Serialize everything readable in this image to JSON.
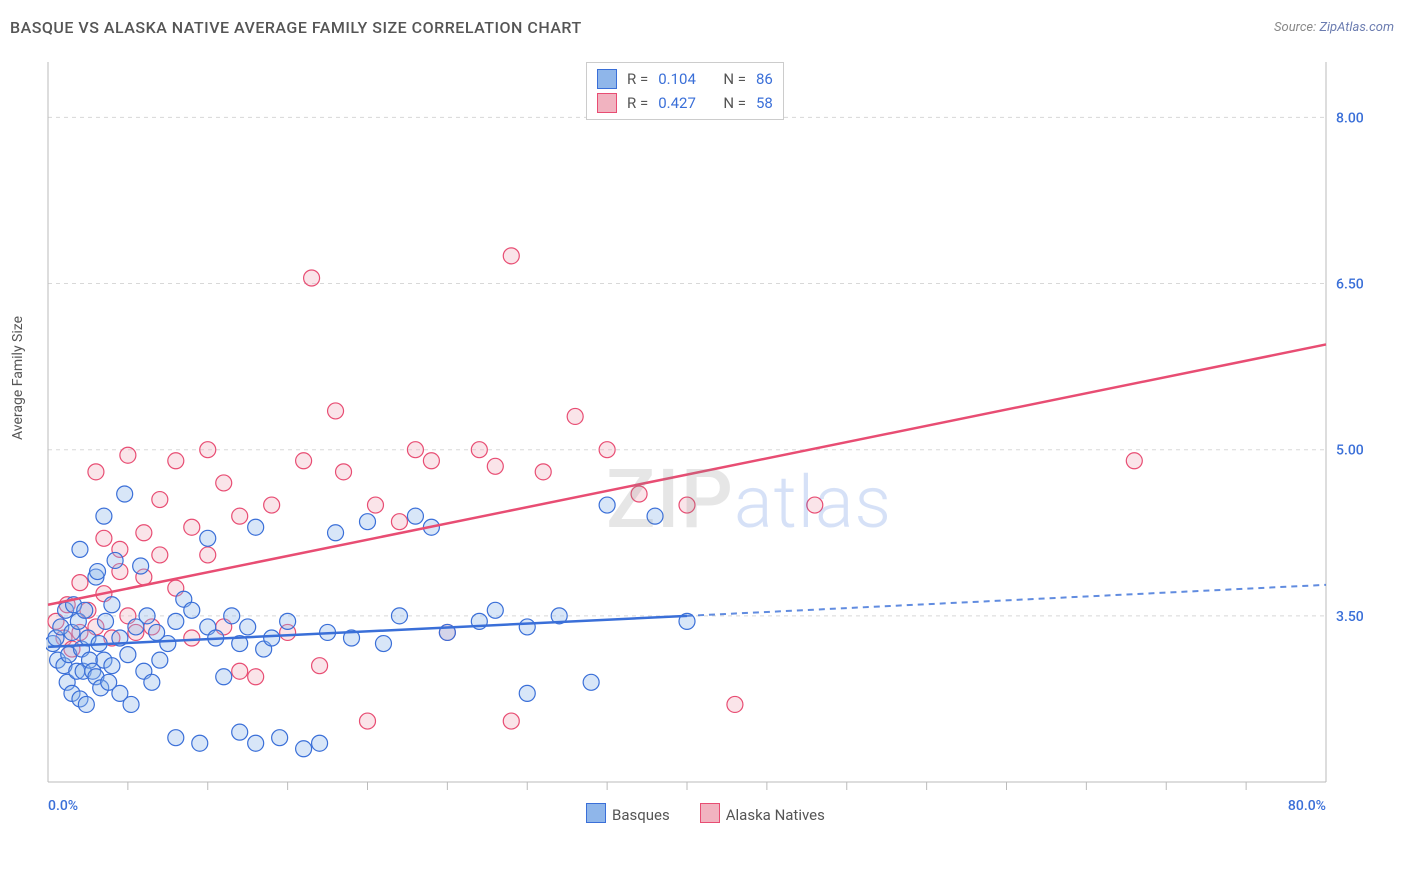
{
  "title": "BASQUE VS ALASKA NATIVE AVERAGE FAMILY SIZE CORRELATION CHART",
  "source_label": "Source:",
  "source_value": "ZipAtlas.com",
  "ylabel": "Average Family Size",
  "watermark_a": "ZIP",
  "watermark_b": "atlas",
  "chart": {
    "type": "scatter",
    "background_color": "#ffffff",
    "grid_color": "#d8d8d8",
    "axis_color": "#bbbbbb",
    "xlim": [
      0,
      80
    ],
    "ylim": [
      2.0,
      8.5
    ],
    "x_tick_label_min": "0.0%",
    "x_tick_label_max": "80.0%",
    "x_minor_ticks": [
      5,
      10,
      15,
      20,
      25,
      30,
      35,
      40,
      45,
      50,
      55,
      60,
      65,
      70,
      75
    ],
    "y_ticks": [
      3.5,
      5.0,
      6.5,
      8.0
    ],
    "label_color": "#3a6fd8",
    "label_fontsize": 14,
    "title_fontsize": 16,
    "point_radius": 8,
    "series": [
      {
        "name": "Basques",
        "fill": "#8fb6ea",
        "stroke": "#3a6fd8",
        "R": "0.104",
        "N": "86",
        "trend": {
          "x1": 0,
          "y1": 3.22,
          "x2": 80,
          "y2": 3.78,
          "solid_until_x": 40
        },
        "points": [
          [
            0.3,
            3.25
          ],
          [
            0.5,
            3.3
          ],
          [
            0.6,
            3.1
          ],
          [
            0.8,
            3.4
          ],
          [
            1.0,
            3.05
          ],
          [
            1.1,
            3.55
          ],
          [
            1.2,
            2.9
          ],
          [
            1.3,
            3.15
          ],
          [
            1.5,
            3.35
          ],
          [
            1.5,
            2.8
          ],
          [
            1.6,
            3.6
          ],
          [
            1.8,
            3.0
          ],
          [
            1.9,
            3.45
          ],
          [
            2.0,
            2.75
          ],
          [
            2.0,
            4.1
          ],
          [
            2.1,
            3.2
          ],
          [
            2.2,
            3.0
          ],
          [
            2.3,
            3.55
          ],
          [
            2.4,
            2.7
          ],
          [
            2.5,
            3.3
          ],
          [
            2.6,
            3.1
          ],
          [
            2.8,
            3.0
          ],
          [
            3.0,
            3.85
          ],
          [
            3.0,
            2.95
          ],
          [
            3.1,
            3.9
          ],
          [
            3.2,
            3.25
          ],
          [
            3.3,
            2.85
          ],
          [
            3.5,
            3.1
          ],
          [
            3.5,
            4.4
          ],
          [
            3.6,
            3.45
          ],
          [
            3.8,
            2.9
          ],
          [
            4.0,
            3.6
          ],
          [
            4.0,
            3.05
          ],
          [
            4.2,
            4.0
          ],
          [
            4.5,
            2.8
          ],
          [
            4.5,
            3.3
          ],
          [
            4.8,
            4.6
          ],
          [
            5.0,
            3.15
          ],
          [
            5.2,
            2.7
          ],
          [
            5.5,
            3.4
          ],
          [
            5.8,
            3.95
          ],
          [
            6.0,
            3.0
          ],
          [
            6.2,
            3.5
          ],
          [
            6.5,
            2.9
          ],
          [
            6.8,
            3.35
          ],
          [
            7.0,
            3.1
          ],
          [
            7.5,
            3.25
          ],
          [
            8.0,
            2.4
          ],
          [
            8.0,
            3.45
          ],
          [
            8.5,
            3.65
          ],
          [
            9.0,
            3.55
          ],
          [
            9.5,
            2.35
          ],
          [
            10.0,
            3.4
          ],
          [
            10.0,
            4.2
          ],
          [
            10.5,
            3.3
          ],
          [
            11.0,
            2.95
          ],
          [
            11.5,
            3.5
          ],
          [
            12.0,
            2.45
          ],
          [
            12.0,
            3.25
          ],
          [
            12.5,
            3.4
          ],
          [
            13.0,
            2.35
          ],
          [
            13.0,
            4.3
          ],
          [
            13.5,
            3.2
          ],
          [
            14.0,
            3.3
          ],
          [
            14.5,
            2.4
          ],
          [
            15.0,
            3.45
          ],
          [
            16.0,
            2.3
          ],
          [
            17.0,
            2.35
          ],
          [
            17.5,
            3.35
          ],
          [
            18.0,
            4.25
          ],
          [
            19.0,
            3.3
          ],
          [
            20.0,
            4.35
          ],
          [
            21.0,
            3.25
          ],
          [
            22.0,
            3.5
          ],
          [
            23.0,
            4.4
          ],
          [
            24.0,
            4.3
          ],
          [
            25.0,
            3.35
          ],
          [
            27.0,
            3.45
          ],
          [
            28.0,
            3.55
          ],
          [
            30.0,
            2.8
          ],
          [
            30.0,
            3.4
          ],
          [
            32.0,
            3.5
          ],
          [
            34.0,
            2.9
          ],
          [
            35.0,
            4.5
          ],
          [
            38.0,
            4.4
          ],
          [
            40.0,
            3.45
          ]
        ]
      },
      {
        "name": "Alaska Natives",
        "fill": "#f1b3c0",
        "stroke": "#e84d73",
        "R": "0.427",
        "N": "58",
        "trend": {
          "x1": 0,
          "y1": 3.6,
          "x2": 80,
          "y2": 5.95,
          "solid_until_x": 80
        },
        "points": [
          [
            0.5,
            3.45
          ],
          [
            1.0,
            3.3
          ],
          [
            1.2,
            3.6
          ],
          [
            1.5,
            3.2
          ],
          [
            2.0,
            3.8
          ],
          [
            2.0,
            3.35
          ],
          [
            2.5,
            3.55
          ],
          [
            3.0,
            4.8
          ],
          [
            3.0,
            3.4
          ],
          [
            3.5,
            3.7
          ],
          [
            3.5,
            4.2
          ],
          [
            4.0,
            3.3
          ],
          [
            4.5,
            3.9
          ],
          [
            4.5,
            4.1
          ],
          [
            5.0,
            3.5
          ],
          [
            5.0,
            4.95
          ],
          [
            5.5,
            3.35
          ],
          [
            6.0,
            4.25
          ],
          [
            6.0,
            3.85
          ],
          [
            6.5,
            3.4
          ],
          [
            7.0,
            4.05
          ],
          [
            7.0,
            4.55
          ],
          [
            8.0,
            4.9
          ],
          [
            8.0,
            3.75
          ],
          [
            9.0,
            4.3
          ],
          [
            9.0,
            3.3
          ],
          [
            10.0,
            4.05
          ],
          [
            10.0,
            5.0
          ],
          [
            11.0,
            3.4
          ],
          [
            11.0,
            4.7
          ],
          [
            12.0,
            3.0
          ],
          [
            12.0,
            4.4
          ],
          [
            13.0,
            2.95
          ],
          [
            14.0,
            4.5
          ],
          [
            15.0,
            3.35
          ],
          [
            16.0,
            4.9
          ],
          [
            16.5,
            6.55
          ],
          [
            17.0,
            3.05
          ],
          [
            18.0,
            5.35
          ],
          [
            18.5,
            4.8
          ],
          [
            20.0,
            2.55
          ],
          [
            20.5,
            4.5
          ],
          [
            22.0,
            4.35
          ],
          [
            23.0,
            5.0
          ],
          [
            24.0,
            4.9
          ],
          [
            25.0,
            3.35
          ],
          [
            27.0,
            5.0
          ],
          [
            28.0,
            4.85
          ],
          [
            29.0,
            2.55
          ],
          [
            29.0,
            6.75
          ],
          [
            31.0,
            4.8
          ],
          [
            33.0,
            5.3
          ],
          [
            35.0,
            5.0
          ],
          [
            37.0,
            4.6
          ],
          [
            40.0,
            4.5
          ],
          [
            43.0,
            2.7
          ],
          [
            48.0,
            4.5
          ],
          [
            68.0,
            4.9
          ]
        ]
      }
    ],
    "stat_labels": {
      "R": "R =",
      "N": "N ="
    },
    "legend_labels": [
      "Basques",
      "Alaska Natives"
    ]
  }
}
